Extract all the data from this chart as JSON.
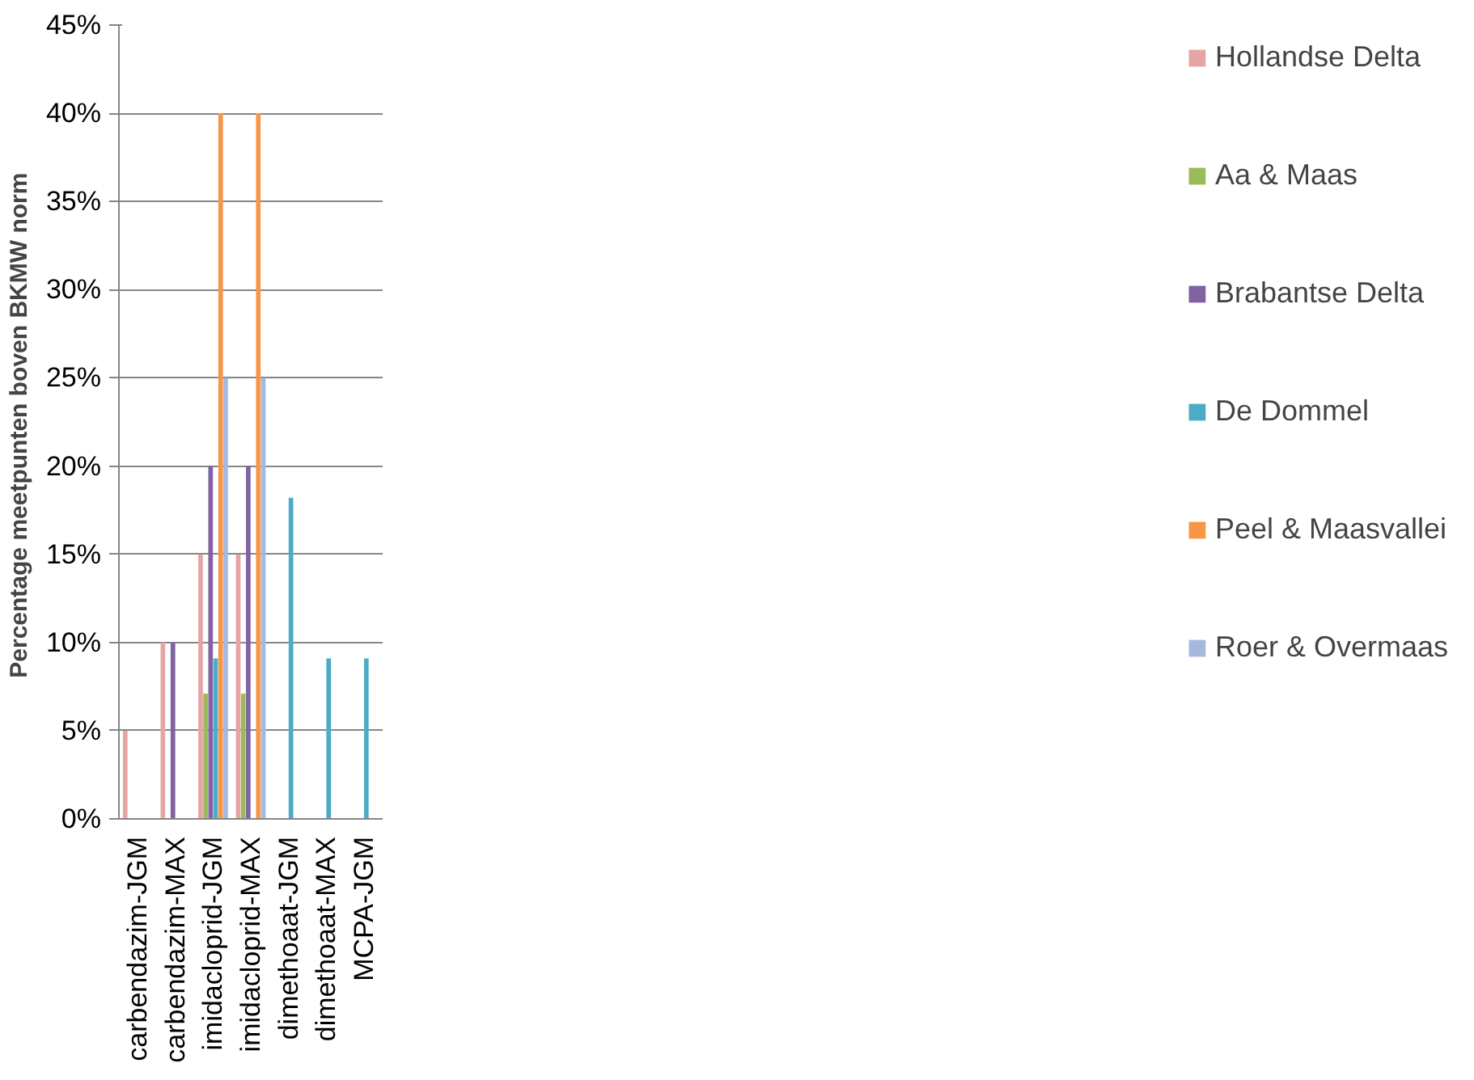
{
  "chart_data": {
    "type": "bar",
    "ylabel": "Percentage meetpunten boven  BKMW norm",
    "categories": [
      "carbendazim-JGM",
      "carbendazim-MAX",
      "imidacloprid-JGM",
      "imidacloprid-MAX",
      "dimethoaat-JGM",
      "dimethoaat-MAX",
      "MCPA-JGM"
    ],
    "series": [
      {
        "name": "Hollandse Delta",
        "color": "#e6a5a4",
        "values": [
          5,
          10,
          15,
          15,
          0,
          0,
          0
        ]
      },
      {
        "name": "Aa & Maas",
        "color": "#9bbb59",
        "values": [
          0,
          0,
          7.1,
          7.1,
          0,
          0,
          0
        ]
      },
      {
        "name": "Brabantse Delta",
        "color": "#8064a2",
        "values": [
          0,
          10,
          20,
          20,
          0,
          0,
          0
        ]
      },
      {
        "name": "De Dommel",
        "color": "#4bacc6",
        "values": [
          0,
          0,
          9.1,
          0,
          18.2,
          9.1,
          9.1
        ]
      },
      {
        "name": "Peel & Maasvallei",
        "color": "#f79646",
        "values": [
          0,
          0,
          40,
          40,
          0,
          0,
          0
        ]
      },
      {
        "name": "Roer & Overmaas",
        "color": "#a5b9e0",
        "values": [
          0,
          0,
          25,
          25,
          0,
          0,
          0
        ]
      }
    ],
    "ylim": [
      0,
      45
    ],
    "yticks": [
      {
        "value": 0,
        "label": "0%"
      },
      {
        "value": 5,
        "label": "5%"
      },
      {
        "value": 10,
        "label": "10%"
      },
      {
        "value": 15,
        "label": "15%"
      },
      {
        "value": 20,
        "label": "20%"
      },
      {
        "value": 25,
        "label": "25%"
      },
      {
        "value": 30,
        "label": "30%"
      },
      {
        "value": 35,
        "label": "35%"
      },
      {
        "value": 40,
        "label": "40%"
      },
      {
        "value": 45,
        "label": "45%"
      }
    ],
    "grid": "y",
    "legend": "right"
  }
}
